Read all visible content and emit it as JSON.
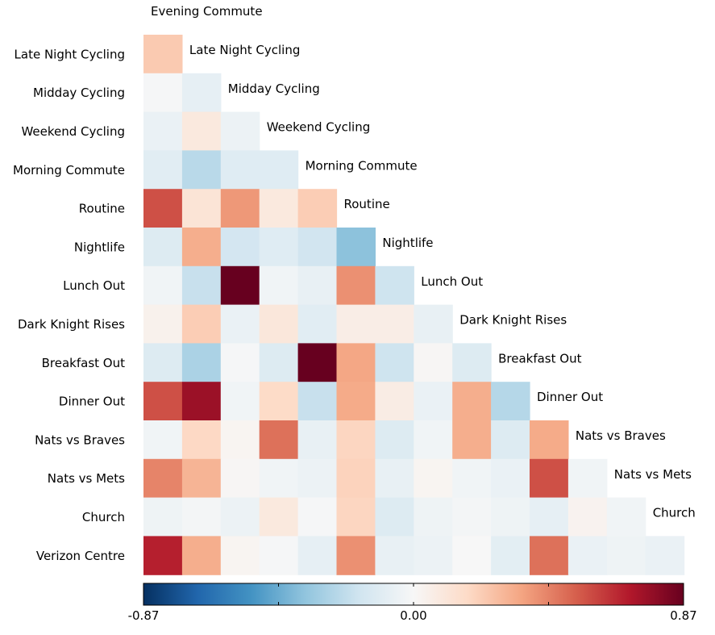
{
  "chart_data": {
    "type": "heatmap",
    "title": "",
    "top_label": "Evening Commute",
    "columns": [
      "Evening Commute",
      "Late Night Cycling",
      "Midday Cycling",
      "Weekend Cycling",
      "Morning Commute",
      "Routine",
      "Nightlife",
      "Lunch Out",
      "Dark Knight Rises",
      "Breakfast Out",
      "Dinner Out",
      "Nats vs Braves",
      "Nats vs Mets",
      "Church"
    ],
    "rows": [
      {
        "label": "Late Night Cycling",
        "values": [
          0.23
        ]
      },
      {
        "label": "Midday Cycling",
        "values": [
          -0.01,
          -0.08
        ]
      },
      {
        "label": "Weekend Cycling",
        "values": [
          -0.06,
          0.09,
          -0.05
        ]
      },
      {
        "label": "Morning Commute",
        "values": [
          -0.1,
          -0.24,
          -0.11,
          -0.11
        ]
      },
      {
        "label": "Routine",
        "values": [
          0.56,
          0.12,
          0.38,
          0.09,
          0.22
        ]
      },
      {
        "label": "Nightlife",
        "values": [
          -0.12,
          0.32,
          -0.16,
          -0.11,
          -0.17,
          -0.36
        ]
      },
      {
        "label": "Lunch Out",
        "values": [
          -0.03,
          -0.2,
          0.87,
          -0.03,
          -0.07,
          0.4,
          -0.18
        ]
      },
      {
        "label": "Dark Knight Rises",
        "values": [
          0.04,
          0.22,
          -0.06,
          0.1,
          -0.1,
          0.06,
          0.06,
          -0.07
        ]
      },
      {
        "label": "Breakfast Out",
        "values": [
          -0.12,
          -0.28,
          -0.01,
          -0.12,
          0.87,
          0.34,
          -0.18,
          0.01,
          -0.12
        ]
      },
      {
        "label": "Dinner Out",
        "values": [
          0.56,
          0.75,
          -0.03,
          0.17,
          -0.2,
          0.33,
          0.07,
          -0.06,
          0.32,
          -0.25
        ]
      },
      {
        "label": "Nats vs Braves",
        "values": [
          -0.03,
          0.18,
          0.02,
          0.48,
          -0.07,
          0.19,
          -0.12,
          -0.03,
          0.32,
          -0.12,
          0.33
        ]
      },
      {
        "label": "Nats vs Mets",
        "values": [
          0.43,
          0.3,
          0.01,
          -0.03,
          -0.05,
          0.2,
          -0.07,
          0.02,
          -0.03,
          -0.06,
          0.56,
          -0.03
        ]
      },
      {
        "label": "Church",
        "values": [
          -0.04,
          -0.02,
          -0.05,
          0.09,
          -0.01,
          0.19,
          -0.12,
          -0.04,
          -0.02,
          -0.04,
          -0.08,
          0.03,
          -0.03
        ]
      },
      {
        "label": "Verizon Centre",
        "values": [
          0.68,
          0.32,
          0.02,
          -0.01,
          -0.08,
          0.4,
          -0.07,
          -0.05,
          0.0,
          -0.09,
          0.48,
          -0.06,
          -0.04,
          -0.06
        ]
      }
    ],
    "colorbar": {
      "min": -0.87,
      "max": 0.87,
      "tick_labels": [
        "-0.87",
        "0.00",
        "0.87"
      ],
      "colormap": "RdBu_r"
    }
  }
}
